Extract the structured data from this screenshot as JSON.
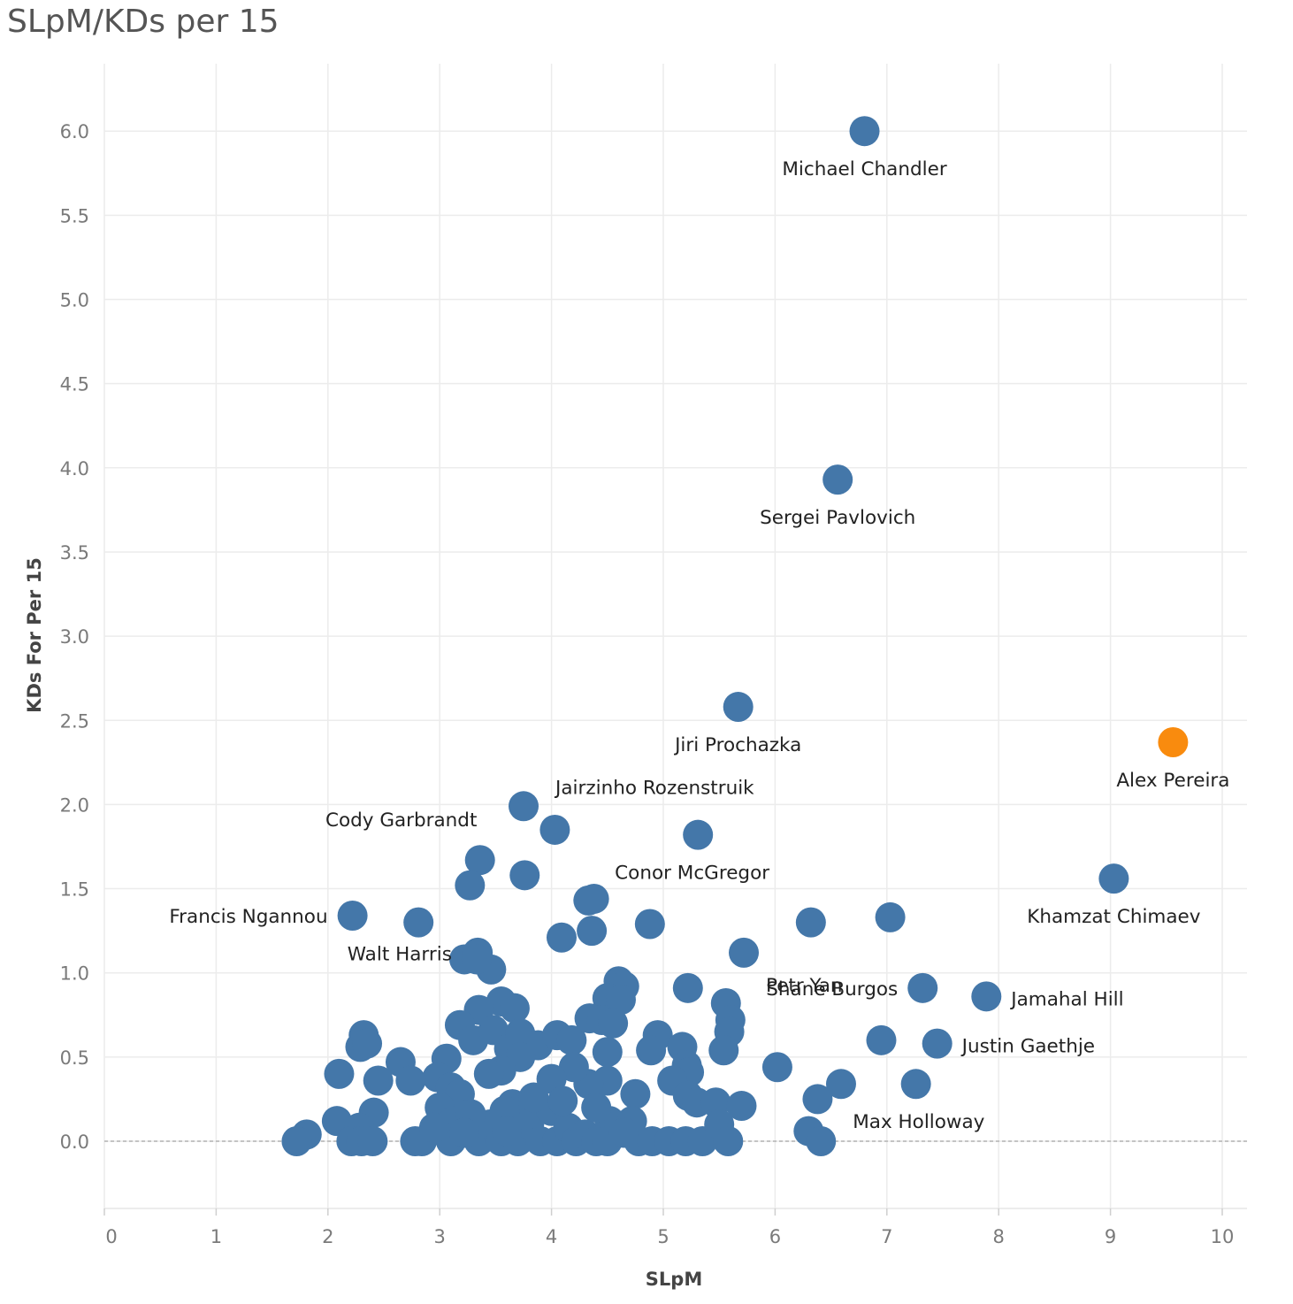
{
  "chart_data": {
    "type": "scatter",
    "title": "SLpM/KDs per 15",
    "xlabel": "SLpM",
    "ylabel": "KDs For Per 15",
    "xlim": [
      0,
      10.2
    ],
    "ylim": [
      -0.4,
      6.35
    ],
    "xticks": [
      "0",
      "1",
      "2",
      "3",
      "4",
      "5",
      "6",
      "7",
      "8",
      "9",
      "10"
    ],
    "xtick_values": [
      0,
      1,
      2,
      3,
      4,
      5,
      6,
      7,
      8,
      9,
      10
    ],
    "yticks": [
      "0.0",
      "0.5",
      "1.0",
      "1.5",
      "2.0",
      "2.5",
      "3.0",
      "3.5",
      "4.0",
      "4.5",
      "5.0",
      "5.5",
      "6.0"
    ],
    "ytick_values": [
      0,
      0.5,
      1,
      1.5,
      2,
      2.5,
      3,
      3.5,
      4,
      4.5,
      5,
      5.5,
      6
    ],
    "grid": true,
    "zero_line": "dashed",
    "colors": {
      "default": "#4477a9",
      "highlight": "#f98b0e"
    },
    "points": [
      {
        "x": 6.8,
        "y": 6.0,
        "label": "Michael Chandler",
        "label_pos": "below"
      },
      {
        "x": 6.56,
        "y": 3.93,
        "label": "Sergei Pavlovich",
        "label_pos": "below"
      },
      {
        "x": 5.67,
        "y": 2.58,
        "label": "Jiri Prochazka",
        "label_pos": "below"
      },
      {
        "x": 9.56,
        "y": 2.37,
        "label": "Alex Pereira",
        "label_pos": "below",
        "highlight": true
      },
      {
        "x": 3.75,
        "y": 1.99,
        "label": "Jairzinho Rozenstruik",
        "label_pos": "right-up"
      },
      {
        "x": 4.03,
        "y": 1.85,
        "label": "Cody Garbrandt",
        "label_pos": "left-up"
      },
      {
        "x": 5.31,
        "y": 1.82,
        "label": "Conor McGregor",
        "label_pos": "below-left"
      },
      {
        "x": 9.03,
        "y": 1.56,
        "label": "Khamzat Chimaev",
        "label_pos": "below"
      },
      {
        "x": 2.22,
        "y": 1.34,
        "label": "Francis Ngannou",
        "label_pos": "left"
      },
      {
        "x": 3.33,
        "y": 1.08,
        "label": "Walt Harris",
        "label_pos": "left"
      },
      {
        "x": 5.72,
        "y": 1.12,
        "label": "Petr Yan",
        "label_pos": "below-right"
      },
      {
        "x": 7.32,
        "y": 0.91,
        "label": "Shane Burgos",
        "label_pos": "left"
      },
      {
        "x": 7.89,
        "y": 0.86,
        "label": "Jamahal Hill",
        "label_pos": "right"
      },
      {
        "x": 7.45,
        "y": 0.58,
        "label": "Justin Gaethje",
        "label_pos": "right"
      },
      {
        "x": 6.41,
        "y": 0.0,
        "label": "Max Holloway",
        "label_pos": "right-up"
      },
      {
        "x": 3.36,
        "y": 1.67
      },
      {
        "x": 3.27,
        "y": 1.52
      },
      {
        "x": 3.76,
        "y": 1.58
      },
      {
        "x": 2.81,
        "y": 1.3
      },
      {
        "x": 4.09,
        "y": 1.21
      },
      {
        "x": 4.36,
        "y": 1.25
      },
      {
        "x": 4.33,
        "y": 1.43
      },
      {
        "x": 4.38,
        "y": 1.44
      },
      {
        "x": 4.88,
        "y": 1.29
      },
      {
        "x": 6.32,
        "y": 1.3
      },
      {
        "x": 7.03,
        "y": 1.33
      },
      {
        "x": 3.22,
        "y": 1.08
      },
      {
        "x": 3.34,
        "y": 1.12
      },
      {
        "x": 3.46,
        "y": 1.02
      },
      {
        "x": 4.6,
        "y": 0.95
      },
      {
        "x": 4.65,
        "y": 0.92
      },
      {
        "x": 4.5,
        "y": 0.85
      },
      {
        "x": 4.62,
        "y": 0.84
      },
      {
        "x": 5.22,
        "y": 0.91
      },
      {
        "x": 5.56,
        "y": 0.82
      },
      {
        "x": 5.6,
        "y": 0.72
      },
      {
        "x": 5.59,
        "y": 0.65
      },
      {
        "x": 5.54,
        "y": 0.54
      },
      {
        "x": 6.95,
        "y": 0.6
      },
      {
        "x": 6.02,
        "y": 0.44
      },
      {
        "x": 6.59,
        "y": 0.34
      },
      {
        "x": 6.38,
        "y": 0.25
      },
      {
        "x": 7.26,
        "y": 0.34
      },
      {
        "x": 6.3,
        "y": 0.06
      },
      {
        "x": 3.55,
        "y": 0.83
      },
      {
        "x": 3.67,
        "y": 0.79
      },
      {
        "x": 3.35,
        "y": 0.78
      },
      {
        "x": 3.18,
        "y": 0.69
      },
      {
        "x": 3.3,
        "y": 0.6
      },
      {
        "x": 3.48,
        "y": 0.66
      },
      {
        "x": 3.62,
        "y": 0.55
      },
      {
        "x": 3.72,
        "y": 0.64
      },
      {
        "x": 3.88,
        "y": 0.57
      },
      {
        "x": 4.05,
        "y": 0.63
      },
      {
        "x": 4.18,
        "y": 0.6
      },
      {
        "x": 4.34,
        "y": 0.73
      },
      {
        "x": 4.45,
        "y": 0.72
      },
      {
        "x": 4.55,
        "y": 0.7
      },
      {
        "x": 4.5,
        "y": 0.53
      },
      {
        "x": 4.95,
        "y": 0.63
      },
      {
        "x": 4.89,
        "y": 0.54
      },
      {
        "x": 5.17,
        "y": 0.56
      },
      {
        "x": 5.21,
        "y": 0.45
      },
      {
        "x": 5.23,
        "y": 0.41
      },
      {
        "x": 5.08,
        "y": 0.36
      },
      {
        "x": 5.22,
        "y": 0.27
      },
      {
        "x": 5.3,
        "y": 0.23
      },
      {
        "x": 5.47,
        "y": 0.23
      },
      {
        "x": 5.7,
        "y": 0.21
      },
      {
        "x": 4.75,
        "y": 0.28
      },
      {
        "x": 4.5,
        "y": 0.36
      },
      {
        "x": 4.33,
        "y": 0.34
      },
      {
        "x": 4.2,
        "y": 0.44
      },
      {
        "x": 4.0,
        "y": 0.37
      },
      {
        "x": 3.72,
        "y": 0.5
      },
      {
        "x": 3.55,
        "y": 0.42
      },
      {
        "x": 3.44,
        "y": 0.4
      },
      {
        "x": 3.06,
        "y": 0.49
      },
      {
        "x": 2.98,
        "y": 0.38
      },
      {
        "x": 3.1,
        "y": 0.32
      },
      {
        "x": 3.18,
        "y": 0.28
      },
      {
        "x": 2.65,
        "y": 0.47
      },
      {
        "x": 2.74,
        "y": 0.36
      },
      {
        "x": 2.45,
        "y": 0.36
      },
      {
        "x": 2.1,
        "y": 0.4
      },
      {
        "x": 2.29,
        "y": 0.56
      },
      {
        "x": 2.32,
        "y": 0.63
      },
      {
        "x": 2.35,
        "y": 0.58
      },
      {
        "x": 2.41,
        "y": 0.17
      },
      {
        "x": 2.08,
        "y": 0.12
      },
      {
        "x": 1.81,
        "y": 0.04
      },
      {
        "x": 1.72,
        "y": 0.0
      },
      {
        "x": 2.28,
        "y": 0.08
      },
      {
        "x": 2.21,
        "y": 0.0
      },
      {
        "x": 2.3,
        "y": 0.0
      },
      {
        "x": 2.4,
        "y": 0.0
      },
      {
        "x": 2.78,
        "y": 0.0
      },
      {
        "x": 2.84,
        "y": 0.0
      },
      {
        "x": 3.0,
        "y": 0.2
      },
      {
        "x": 3.12,
        "y": 0.12
      },
      {
        "x": 3.1,
        "y": 0.0
      },
      {
        "x": 3.35,
        "y": 0.0
      },
      {
        "x": 3.45,
        "y": 0.1
      },
      {
        "x": 3.55,
        "y": 0.0
      },
      {
        "x": 3.65,
        "y": 0.22
      },
      {
        "x": 3.7,
        "y": 0.0
      },
      {
        "x": 3.8,
        "y": 0.1
      },
      {
        "x": 3.9,
        "y": 0.0
      },
      {
        "x": 4.0,
        "y": 0.18
      },
      {
        "x": 4.05,
        "y": 0.0
      },
      {
        "x": 4.15,
        "y": 0.08
      },
      {
        "x": 4.22,
        "y": 0.0
      },
      {
        "x": 4.3,
        "y": 0.04
      },
      {
        "x": 4.4,
        "y": 0.0
      },
      {
        "x": 4.52,
        "y": 0.12
      },
      {
        "x": 4.5,
        "y": 0.0
      },
      {
        "x": 4.72,
        "y": 0.12
      },
      {
        "x": 4.78,
        "y": 0.0
      },
      {
        "x": 4.9,
        "y": 0.0
      },
      {
        "x": 5.05,
        "y": 0.0
      },
      {
        "x": 5.2,
        "y": 0.0
      },
      {
        "x": 5.35,
        "y": 0.0
      },
      {
        "x": 5.5,
        "y": 0.1
      },
      {
        "x": 5.58,
        "y": 0.0
      },
      {
        "x": 3.28,
        "y": 0.16
      },
      {
        "x": 3.58,
        "y": 0.18
      },
      {
        "x": 3.84,
        "y": 0.26
      },
      {
        "x": 4.1,
        "y": 0.24
      },
      {
        "x": 4.4,
        "y": 0.2
      },
      {
        "x": 2.95,
        "y": 0.08
      },
      {
        "x": 3.22,
        "y": 0.05
      },
      {
        "x": 3.6,
        "y": 0.06
      },
      {
        "x": 4.65,
        "y": 0.05
      }
    ]
  }
}
